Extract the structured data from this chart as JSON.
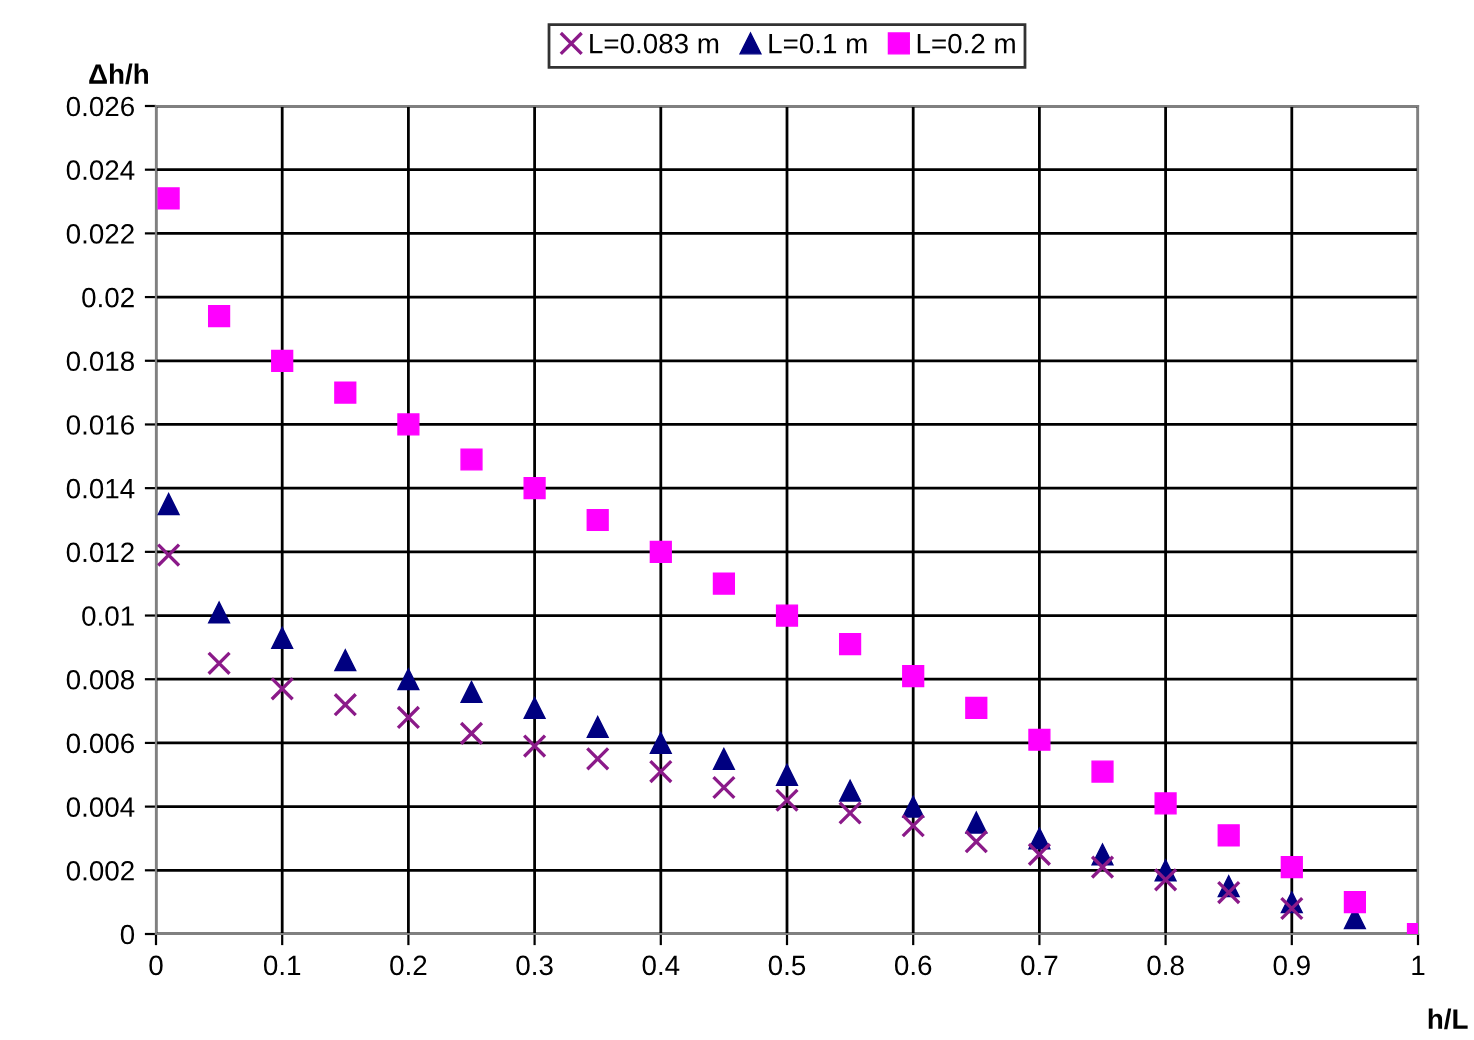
{
  "chart_data": {
    "type": "scatter",
    "xlabel": "h/L",
    "ylabel": "Δh/h",
    "xlim": [
      0,
      1
    ],
    "ylim": [
      0,
      0.026
    ],
    "xticks": [
      0,
      0.1,
      0.2,
      0.3,
      0.4,
      0.5,
      0.6,
      0.7,
      0.8,
      0.9,
      1
    ],
    "yticks": [
      0,
      0.002,
      0.004,
      0.006,
      0.008,
      0.01,
      0.012,
      0.014,
      0.016,
      0.018,
      0.02,
      0.022,
      0.024,
      0.026
    ],
    "grid": true,
    "legend": "top",
    "series": [
      {
        "name": "L=0.083 m",
        "color": "#8b1a89",
        "marker": "cross",
        "x": [
          0.01,
          0.05,
          0.1,
          0.15,
          0.2,
          0.25,
          0.3,
          0.35,
          0.4,
          0.45,
          0.5,
          0.55,
          0.6,
          0.65,
          0.7,
          0.75,
          0.8,
          0.85,
          0.9
        ],
        "values": [
          0.0119,
          0.0085,
          0.0077,
          0.0072,
          0.0068,
          0.0063,
          0.0059,
          0.0055,
          0.0051,
          0.0046,
          0.0042,
          0.0038,
          0.0034,
          0.0029,
          0.0025,
          0.0021,
          0.0017,
          0.0013,
          0.0008
        ]
      },
      {
        "name": "L=0.1 m",
        "color": "#000080",
        "marker": "triangle",
        "x": [
          0.01,
          0.05,
          0.1,
          0.15,
          0.2,
          0.25,
          0.3,
          0.35,
          0.4,
          0.45,
          0.5,
          0.55,
          0.6,
          0.65,
          0.7,
          0.75,
          0.8,
          0.85,
          0.9,
          0.95
        ],
        "values": [
          0.0135,
          0.0101,
          0.0093,
          0.0086,
          0.008,
          0.0076,
          0.0071,
          0.0065,
          0.006,
          0.0055,
          0.005,
          0.0045,
          0.004,
          0.0035,
          0.003,
          0.0025,
          0.002,
          0.0015,
          0.001,
          0.0005
        ]
      },
      {
        "name": "L=0.2 m",
        "color": "#ff00ff",
        "marker": "square",
        "x": [
          0.01,
          0.05,
          0.1,
          0.15,
          0.2,
          0.25,
          0.3,
          0.35,
          0.4,
          0.45,
          0.5,
          0.55,
          0.6,
          0.65,
          0.7,
          0.75,
          0.8,
          0.85,
          0.9,
          0.95,
          1
        ],
        "values": [
          0.0231,
          0.0194,
          0.018,
          0.017,
          0.016,
          0.0149,
          0.014,
          0.013,
          0.012,
          0.011,
          0.01,
          0.0091,
          0.0081,
          0.0071,
          0.0061,
          0.0051,
          0.0041,
          0.0031,
          0.0021,
          0.001,
          0
        ]
      }
    ]
  }
}
